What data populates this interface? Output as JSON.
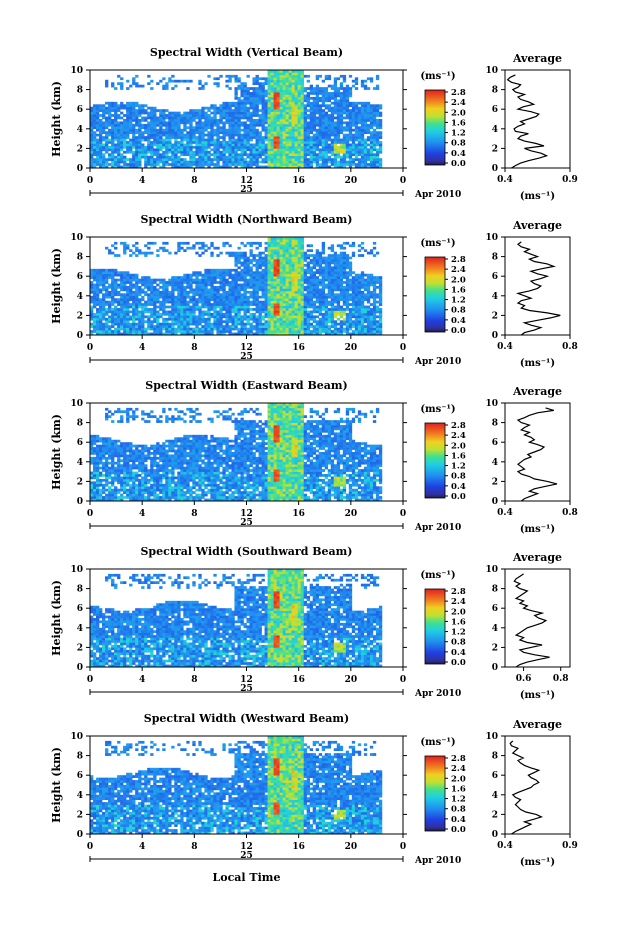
{
  "chart_data": [
    {
      "type": "heatmap",
      "title": "Spectral Width (Vertical Beam)",
      "ylabel": "Height (km)",
      "xticks": [
        "0",
        "4",
        "8",
        "12",
        "16",
        "20",
        "0"
      ],
      "yticks": [
        "0",
        "2",
        "4",
        "6",
        "8",
        "10"
      ],
      "xlim": [
        0,
        24
      ],
      "ylim": [
        0,
        10
      ],
      "date_label": "25",
      "month_label": "Apr 2010",
      "colorbar": {
        "unit": "(ms⁻¹)",
        "ticks": [
          "0.0",
          "0.4",
          "0.8",
          "1.2",
          "1.6",
          "2.0",
          "2.4",
          "2.8"
        ]
      },
      "average": {
        "title": "Average",
        "xlabel": "(ms⁻¹)",
        "xticks": [
          "0.4",
          "0.9"
        ],
        "xlim": [
          0.4,
          0.9
        ],
        "height": [
          0,
          0.25,
          0.5,
          0.75,
          1,
          1.25,
          1.5,
          1.75,
          2,
          2.25,
          2.5,
          2.75,
          3,
          3.25,
          3.5,
          3.75,
          4,
          4.25,
          4.5,
          4.75,
          5,
          5.25,
          5.5,
          5.75,
          6,
          6.25,
          6.5,
          6.75,
          7,
          7.25,
          7.5,
          7.75,
          8,
          8.25,
          8.5,
          8.75,
          9,
          9.25,
          9.5
        ],
        "value": [
          0.45,
          0.48,
          0.52,
          0.58,
          0.66,
          0.72,
          0.68,
          0.6,
          0.55,
          0.7,
          0.64,
          0.55,
          0.5,
          0.52,
          0.58,
          0.48,
          0.47,
          0.5,
          0.55,
          0.52,
          0.58,
          0.64,
          0.66,
          0.6,
          0.5,
          0.54,
          0.62,
          0.58,
          0.52,
          0.5,
          0.55,
          0.48,
          0.46,
          0.5,
          0.52,
          0.45,
          0.42,
          0.44,
          0.48
        ]
      }
    },
    {
      "type": "heatmap",
      "title": "Spectral Width (Northward Beam)",
      "ylabel": "Height (km)",
      "xticks": [
        "0",
        "4",
        "8",
        "12",
        "16",
        "20",
        "0"
      ],
      "yticks": [
        "0",
        "2",
        "4",
        "6",
        "8",
        "10"
      ],
      "xlim": [
        0,
        24
      ],
      "ylim": [
        0,
        10
      ],
      "date_label": "25",
      "month_label": "Apr 2010",
      "colorbar": {
        "unit": "(ms⁻¹)",
        "ticks": [
          "0.0",
          "0.4",
          "0.8",
          "1.2",
          "1.6",
          "2.0",
          "2.4",
          "2.8"
        ]
      },
      "average": {
        "title": "Average",
        "xlabel": "(ms⁻¹)",
        "xticks": [
          "0.4",
          "0.8"
        ],
        "xlim": [
          0.4,
          0.8
        ],
        "height": [
          0,
          0.25,
          0.5,
          0.75,
          1,
          1.25,
          1.5,
          1.75,
          2,
          2.25,
          2.5,
          2.75,
          3,
          3.25,
          3.5,
          3.75,
          4,
          4.25,
          4.5,
          4.75,
          5,
          5.25,
          5.5,
          5.75,
          6,
          6.25,
          6.5,
          6.75,
          7,
          7.25,
          7.5,
          7.75,
          8,
          8.25,
          8.5,
          8.75,
          9,
          9.25,
          9.5
        ],
        "value": [
          0.5,
          0.52,
          0.58,
          0.62,
          0.56,
          0.52,
          0.6,
          0.68,
          0.74,
          0.66,
          0.55,
          0.5,
          0.52,
          0.48,
          0.5,
          0.56,
          0.52,
          0.48,
          0.55,
          0.6,
          0.62,
          0.58,
          0.56,
          0.62,
          0.66,
          0.6,
          0.56,
          0.62,
          0.7,
          0.66,
          0.58,
          0.55,
          0.6,
          0.56,
          0.52,
          0.55,
          0.5,
          0.48,
          0.5
        ]
      }
    },
    {
      "type": "heatmap",
      "title": "Spectral Width (Eastward Beam)",
      "ylabel": "Height (km)",
      "xticks": [
        "0",
        "4",
        "8",
        "12",
        "16",
        "20",
        "0"
      ],
      "yticks": [
        "0",
        "2",
        "4",
        "6",
        "8",
        "10"
      ],
      "xlim": [
        0,
        24
      ],
      "ylim": [
        0,
        10
      ],
      "date_label": "25",
      "month_label": "Apr 2010",
      "colorbar": {
        "unit": "(ms⁻¹)",
        "ticks": [
          "0.0",
          "0.4",
          "0.8",
          "1.2",
          "1.6",
          "2.0",
          "2.4",
          "2.8"
        ]
      },
      "average": {
        "title": "Average",
        "xlabel": "(ms⁻¹)",
        "xticks": [
          "0.4",
          "0.8"
        ],
        "xlim": [
          0.4,
          0.8
        ],
        "height": [
          0,
          0.25,
          0.5,
          0.75,
          1,
          1.25,
          1.5,
          1.75,
          2,
          2.25,
          2.5,
          2.75,
          3,
          3.25,
          3.5,
          3.75,
          4,
          4.25,
          4.5,
          4.75,
          5,
          5.25,
          5.5,
          5.75,
          6,
          6.25,
          6.5,
          6.75,
          7,
          7.25,
          7.5,
          7.75,
          8,
          8.25,
          8.5,
          8.75,
          9,
          9.25,
          9.5
        ],
        "value": [
          0.5,
          0.52,
          0.56,
          0.6,
          0.55,
          0.58,
          0.65,
          0.72,
          0.66,
          0.58,
          0.55,
          0.5,
          0.48,
          0.52,
          0.5,
          0.48,
          0.5,
          0.52,
          0.56,
          0.54,
          0.58,
          0.62,
          0.64,
          0.6,
          0.55,
          0.58,
          0.56,
          0.52,
          0.55,
          0.5,
          0.52,
          0.55,
          0.5,
          0.48,
          0.52,
          0.55,
          0.6,
          0.7,
          0.65
        ]
      }
    },
    {
      "type": "heatmap",
      "title": "Spectral Width (Southward Beam)",
      "ylabel": "Height (km)",
      "xticks": [
        "0",
        "4",
        "8",
        "12",
        "16",
        "20",
        "0"
      ],
      "yticks": [
        "0",
        "2",
        "4",
        "6",
        "8",
        "10"
      ],
      "xlim": [
        0,
        24
      ],
      "ylim": [
        0,
        10
      ],
      "date_label": "25",
      "month_label": "Apr 2010",
      "colorbar": {
        "unit": "(ms⁻¹)",
        "ticks": [
          "0.0",
          "0.4",
          "0.8",
          "1.2",
          "1.6",
          "2.0",
          "2.4",
          "2.8"
        ]
      },
      "average": {
        "title": "Average",
        "xlabel": "(ms⁻¹)",
        "xticks": [
          "0.6",
          "0.8"
        ],
        "xlim": [
          0.5,
          0.85
        ],
        "height": [
          0,
          0.25,
          0.5,
          0.75,
          1,
          1.25,
          1.5,
          1.75,
          2,
          2.25,
          2.5,
          2.75,
          3,
          3.25,
          3.5,
          3.75,
          4,
          4.25,
          4.5,
          4.75,
          5,
          5.25,
          5.5,
          5.75,
          6,
          6.25,
          6.5,
          6.75,
          7,
          7.25,
          7.5,
          7.75,
          8,
          8.25,
          8.5,
          8.75,
          9,
          9.25,
          9.5
        ],
        "value": [
          0.56,
          0.58,
          0.62,
          0.68,
          0.74,
          0.66,
          0.6,
          0.58,
          0.64,
          0.7,
          0.62,
          0.58,
          0.6,
          0.56,
          0.58,
          0.6,
          0.62,
          0.66,
          0.7,
          0.72,
          0.68,
          0.66,
          0.7,
          0.64,
          0.6,
          0.62,
          0.58,
          0.6,
          0.56,
          0.58,
          0.6,
          0.62,
          0.58,
          0.56,
          0.58,
          0.55,
          0.56,
          0.58,
          0.6
        ]
      }
    },
    {
      "type": "heatmap",
      "title": "Spectral Width (Westward Beam)",
      "ylabel": "Height (km)",
      "xlabel": "Local Time",
      "xticks": [
        "0",
        "4",
        "8",
        "12",
        "16",
        "20",
        "0"
      ],
      "yticks": [
        "0",
        "2",
        "4",
        "6",
        "8",
        "10"
      ],
      "xlim": [
        0,
        24
      ],
      "ylim": [
        0,
        10
      ],
      "date_label": "25",
      "month_label": "Apr 2010",
      "colorbar": {
        "unit": "(ms⁻¹)",
        "ticks": [
          "0.0",
          "0.4",
          "0.8",
          "1.2",
          "1.6",
          "2.0",
          "2.4",
          "2.8"
        ]
      },
      "average": {
        "title": "Average",
        "xlabel": "(ms⁻¹)",
        "xticks": [
          "0.4",
          "0.9"
        ],
        "xlim": [
          0.4,
          0.9
        ],
        "height": [
          0,
          0.25,
          0.5,
          0.75,
          1,
          1.25,
          1.5,
          1.75,
          2,
          2.25,
          2.5,
          2.75,
          3,
          3.25,
          3.5,
          3.75,
          4,
          4.25,
          4.5,
          4.75,
          5,
          5.25,
          5.5,
          5.75,
          6,
          6.25,
          6.5,
          6.75,
          7,
          7.25,
          7.5,
          7.75,
          8,
          8.25,
          8.5,
          8.75,
          9,
          9.25,
          9.5
        ],
        "value": [
          0.45,
          0.48,
          0.52,
          0.56,
          0.6,
          0.55,
          0.62,
          0.68,
          0.64,
          0.56,
          0.52,
          0.5,
          0.48,
          0.5,
          0.52,
          0.48,
          0.46,
          0.5,
          0.55,
          0.6,
          0.62,
          0.66,
          0.64,
          0.6,
          0.58,
          0.62,
          0.66,
          0.6,
          0.55,
          0.52,
          0.5,
          0.54,
          0.5,
          0.46,
          0.48,
          0.5,
          0.45,
          0.44,
          0.46
        ]
      }
    }
  ]
}
